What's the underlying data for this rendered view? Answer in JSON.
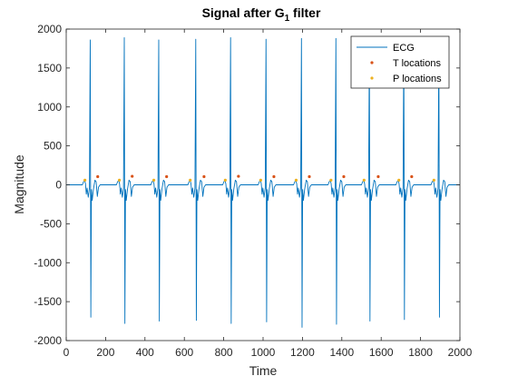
{
  "chart_data": {
    "type": "line",
    "title": "Signal after G",
    "title_subscript": "1",
    "title_suffix": " filter",
    "xlabel": "Time",
    "ylabel": "Magnitude",
    "xlim": [
      0,
      2000
    ],
    "ylim": [
      -2000,
      2000
    ],
    "x_ticks": [
      0,
      200,
      400,
      600,
      800,
      1000,
      1200,
      1400,
      1600,
      1800,
      2000
    ],
    "y_ticks": [
      -2000,
      -1500,
      -1000,
      -500,
      0,
      500,
      1000,
      1500,
      2000
    ],
    "grid": false,
    "legend_position": "top-right",
    "series": [
      {
        "name": "ECG",
        "kind": "line",
        "color": "#0072BD",
        "beats": [
          {
            "r_peak_time": 122,
            "r_peak_value": 1860,
            "s_trough_value": -1700
          },
          {
            "r_peak_time": 295,
            "r_peak_value": 1890,
            "s_trough_value": -1780
          },
          {
            "r_peak_time": 470,
            "r_peak_value": 1860,
            "s_trough_value": -1750
          },
          {
            "r_peak_time": 658,
            "r_peak_value": 1870,
            "s_trough_value": -1740
          },
          {
            "r_peak_time": 835,
            "r_peak_value": 1890,
            "s_trough_value": -1780
          },
          {
            "r_peak_time": 1015,
            "r_peak_value": 1870,
            "s_trough_value": -1760
          },
          {
            "r_peak_time": 1195,
            "r_peak_value": 1880,
            "s_trough_value": -1830
          },
          {
            "r_peak_time": 1370,
            "r_peak_value": 1880,
            "s_trough_value": -1790
          },
          {
            "r_peak_time": 1540,
            "r_peak_value": 1810,
            "s_trough_value": -1750
          },
          {
            "r_peak_time": 1715,
            "r_peak_value": 1860,
            "s_trough_value": -1730
          },
          {
            "r_peak_time": 1893,
            "r_peak_value": 1830,
            "s_trough_value": -1700
          }
        ]
      },
      {
        "name": "T locations",
        "kind": "scatter",
        "color": "#D95319",
        "x": [
          160,
          335,
          510,
          700,
          875,
          1055,
          1235,
          1410,
          1585,
          1755
        ],
        "y": [
          105,
          110,
          105,
          105,
          110,
          105,
          105,
          105,
          105,
          105
        ]
      },
      {
        "name": "P locations",
        "kind": "scatter",
        "color": "#EDB120",
        "x": [
          95,
          270,
          445,
          630,
          808,
          988,
          1168,
          1345,
          1513,
          1690,
          1868
        ],
        "y": [
          60,
          60,
          60,
          60,
          60,
          60,
          60,
          60,
          60,
          60,
          60
        ]
      }
    ]
  }
}
